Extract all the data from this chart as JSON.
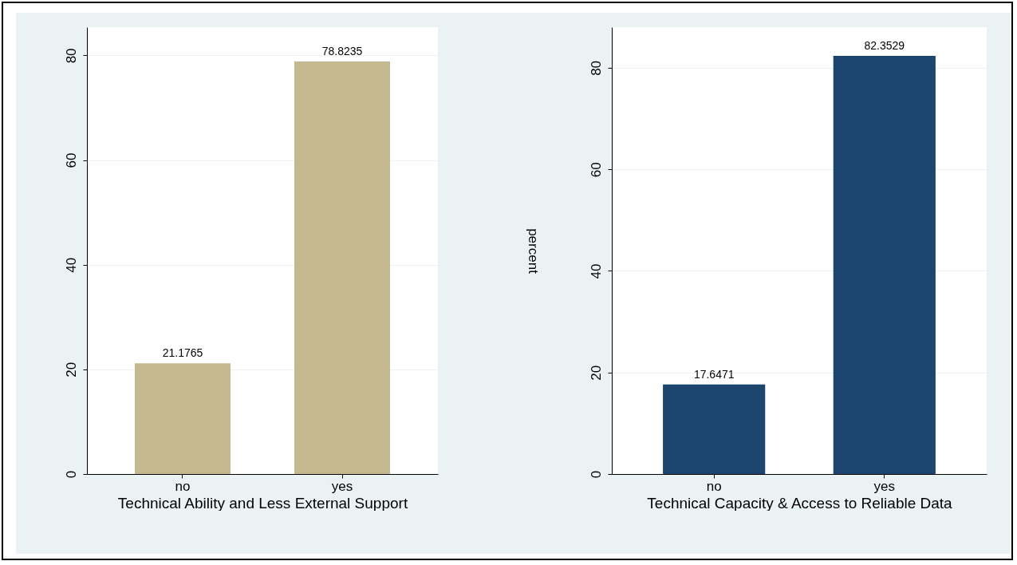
{
  "chart_data": [
    {
      "type": "bar",
      "categories": [
        "no",
        "yes"
      ],
      "values": [
        21.1765,
        78.8235
      ],
      "color": "#c4b890",
      "ylim": [
        0,
        85.4
      ],
      "yticks": [
        0,
        20,
        40,
        60,
        80
      ],
      "grid": "y",
      "data_labels": true,
      "xlabel": "Technical Ability and Less External Support"
    },
    {
      "type": "bar",
      "categories": [
        "no",
        "yes"
      ],
      "values": [
        17.6471,
        82.3529
      ],
      "color": "#1c466e",
      "ylim": [
        0,
        88
      ],
      "yticks": [
        0,
        20,
        40,
        60,
        80
      ],
      "grid": "y",
      "data_labels": true,
      "xlabel": "Technical Capacity & Access to Reliable Data",
      "ylabel": "percent"
    }
  ]
}
